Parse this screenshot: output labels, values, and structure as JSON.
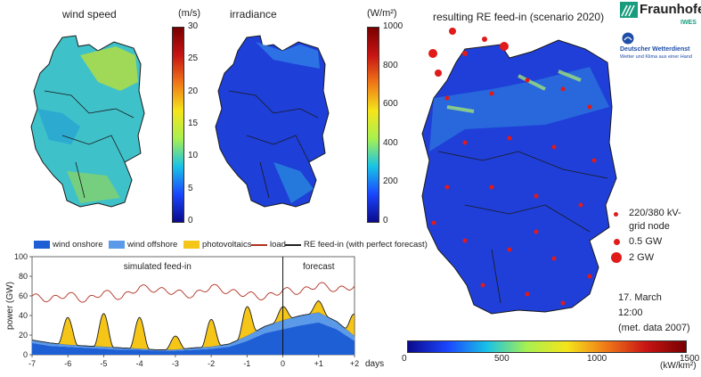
{
  "panels": {
    "wind": {
      "title": "wind speed",
      "unit": "(m/s)",
      "ticks": [
        "30",
        "25",
        "20",
        "15",
        "10",
        "5",
        "0"
      ]
    },
    "irr": {
      "title": "irradiance",
      "unit": "(W/m²)",
      "ticks": [
        "1000",
        "800",
        "600",
        "400",
        "200",
        "0"
      ]
    },
    "feed": {
      "title": "resulting RE feed-in (scenario 2020)",
      "unit": "(kW/km²)",
      "ticks": [
        "0",
        "500",
        "1000",
        "1500"
      ]
    }
  },
  "logos": {
    "fraunhofer": "Fraunhofer",
    "iwes": "IWES",
    "dwd": "Deutscher Wetterdienst",
    "dwd_sub": "Wetter und Klima aus einer Hand"
  },
  "map_legend": {
    "node": "220/380 kV-grid node",
    "node_l1": "220/380 kV-",
    "node_l2": "grid node",
    "gw05": "0.5 GW",
    "gw2": "2 GW"
  },
  "snapshot": {
    "date": "17. March",
    "time": "12:00",
    "note": "(met. data 2007)"
  },
  "colors": {
    "wind_onshore": "#1f5fd6",
    "wind_offshore": "#5b9ae8",
    "pv": "#f5c518",
    "load": "#b03020",
    "re": "#222222"
  },
  "chart_data": {
    "type": "area",
    "ylabel": "power (GW)",
    "xlabel": "days",
    "ylim": [
      0,
      100
    ],
    "xlim": [
      -7,
      2
    ],
    "yticks": [
      "0",
      "20",
      "40",
      "60",
      "80",
      "100"
    ],
    "xticks": [
      {
        "v": -7,
        "label": "-7"
      },
      {
        "v": -6,
        "label": "-6"
      },
      {
        "v": -5,
        "label": "-5"
      },
      {
        "v": -4,
        "label": "-4"
      },
      {
        "v": -3,
        "label": "-3"
      },
      {
        "v": -2,
        "label": "-2"
      },
      {
        "v": -1,
        "label": "-1"
      },
      {
        "v": 0,
        "label": "0"
      },
      {
        "v": 1,
        "label": "+1"
      },
      {
        "v": 2,
        "label": "+2"
      }
    ],
    "annotations": {
      "simulated": "simulated feed-in",
      "forecast": "forecast"
    },
    "series": [
      {
        "name": "wind onshore",
        "x": [
          -7,
          -6.5,
          -6,
          -5.5,
          -5,
          -4.5,
          -4,
          -3.5,
          -3,
          -2.5,
          -2,
          -1.5,
          -1,
          -0.5,
          0,
          0.5,
          1,
          1.5,
          2
        ],
        "values": [
          12,
          9,
          8,
          7,
          6,
          5,
          5,
          4,
          4,
          5,
          6,
          8,
          14,
          22,
          26,
          30,
          33,
          26,
          14
        ]
      },
      {
        "name": "wind offshore",
        "x": [
          -7,
          -6.5,
          -6,
          -5.5,
          -5,
          -4.5,
          -4,
          -3.5,
          -3,
          -2.5,
          -2,
          -1.5,
          -1,
          -0.5,
          0,
          0.5,
          1,
          1.5,
          2
        ],
        "values": [
          3,
          3,
          2,
          2,
          2,
          2,
          1,
          1,
          1,
          2,
          2,
          3,
          5,
          7,
          9,
          10,
          10,
          8,
          5
        ]
      },
      {
        "name": "photovoltaics",
        "peaks": [
          -6,
          -5,
          -4,
          -3,
          -2,
          -1,
          0,
          1,
          2
        ],
        "values": [
          28,
          34,
          32,
          14,
          28,
          30,
          14,
          12,
          22
        ]
      },
      {
        "name": "load",
        "values": [
          60,
          56,
          62,
          55,
          64,
          58,
          69,
          66,
          64,
          60,
          70,
          64,
          62,
          58,
          66,
          64,
          72,
          66,
          70
        ]
      },
      {
        "name": "RE feed-in (with perfect forecast)"
      }
    ]
  }
}
